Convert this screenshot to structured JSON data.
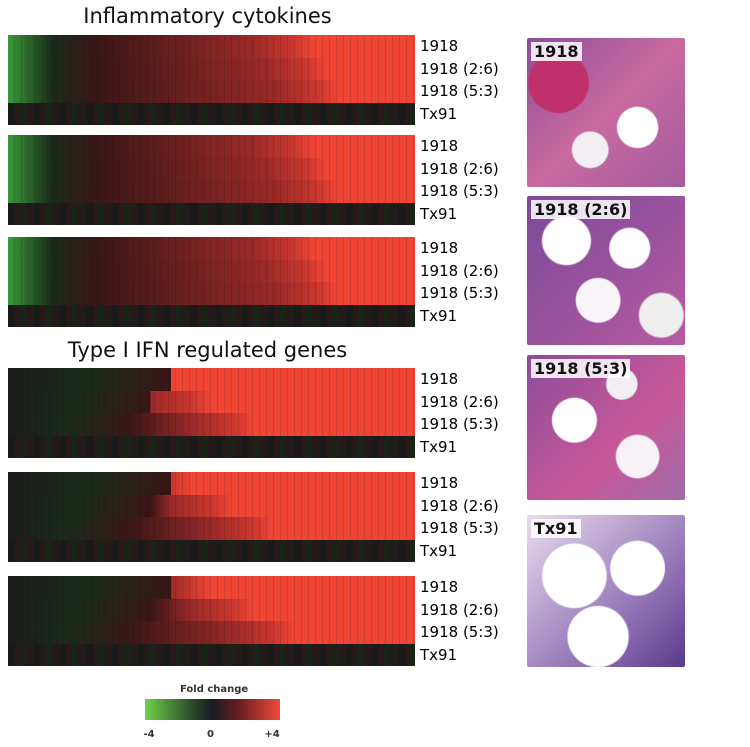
{
  "figure": {
    "heatmap_groups": [
      {
        "title": "Inflammatory cytokines",
        "panels": [
          {
            "rows": [
              "1918",
              "1918 (2:6)",
              "1918 (5:3)",
              "Tx91"
            ]
          },
          {
            "rows": [
              "1918",
              "1918 (2:6)",
              "1918 (5:3)",
              "Tx91"
            ]
          },
          {
            "rows": [
              "1918",
              "1918 (2:6)",
              "1918 (5:3)",
              "Tx91"
            ]
          }
        ]
      },
      {
        "title": "Type I IFN regulated genes",
        "panels": [
          {
            "rows": [
              "1918",
              "1918 (2:6)",
              "1918 (5:3)",
              "Tx91"
            ]
          },
          {
            "rows": [
              "1918",
              "1918 (2:6)",
              "1918 (5:3)",
              "Tx91"
            ]
          },
          {
            "rows": [
              "1918",
              "1918 (2:6)",
              "1918 (5:3)",
              "Tx91"
            ]
          }
        ]
      }
    ],
    "colorbar": {
      "title": "Fold change",
      "range": [
        -4,
        4
      ],
      "ticks": [
        -4,
        0,
        {
          "value": 4,
          "label": "+4"
        }
      ]
    },
    "histology": [
      {
        "label": "1918"
      },
      {
        "label": "1918 (2:6)"
      },
      {
        "label": "1918 (5:3)"
      },
      {
        "label": "Tx91"
      }
    ]
  }
}
